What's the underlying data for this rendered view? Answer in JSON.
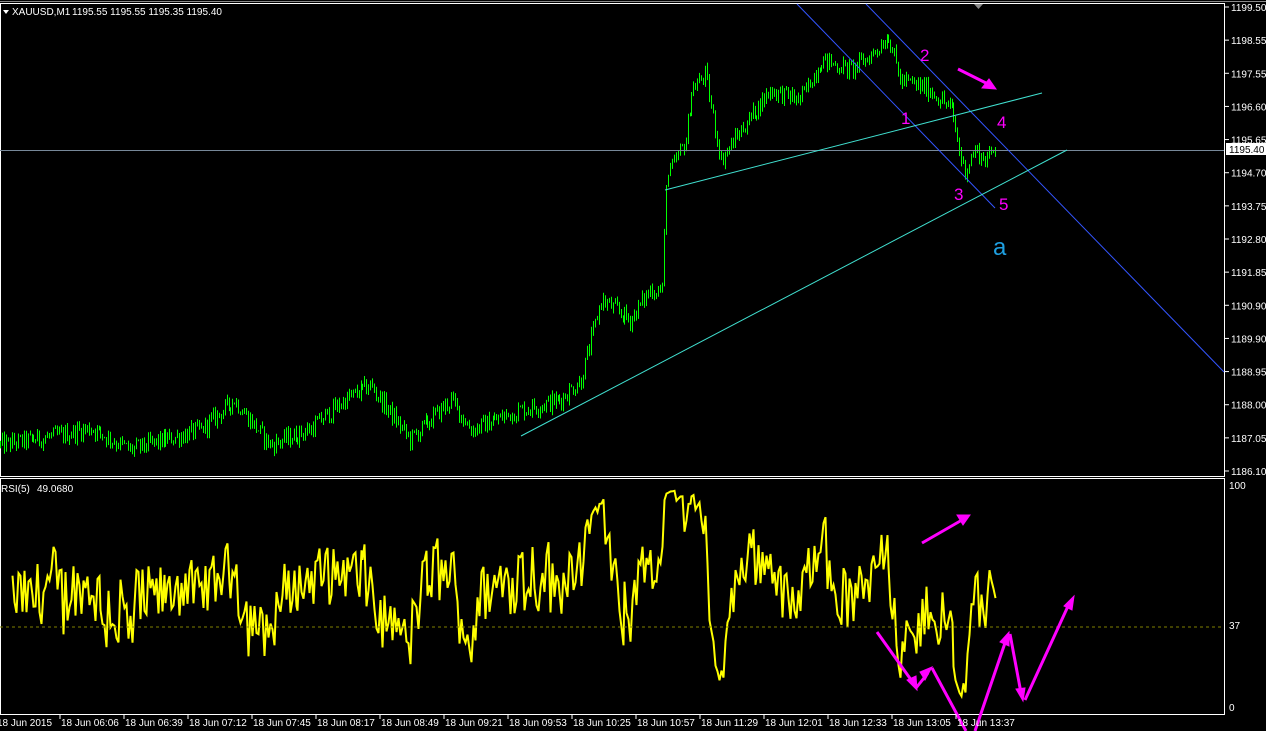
{
  "header": {
    "symbol": "XAUUSD,M1",
    "ohlc": "1195.55 1195.55 1195.35 1195.40"
  },
  "colors": {
    "background": "#000000",
    "bars": "#00ff00",
    "rsi": "#ffff00",
    "axis": "#ffffff",
    "bid_line": "#778899",
    "channel": "#3355ff",
    "trendline": "#40e0d0",
    "annotation": "#ff00ff",
    "wave_label_a": "#1e9fe0"
  },
  "chart_data": [
    {
      "type": "bar",
      "title": "XAUUSD,M1",
      "current_price": "1195.40",
      "ylim": [
        1186.1,
        1199.5
      ],
      "y_ticks": [
        "1199.50",
        "1198.55",
        "1197.55",
        "1196.60",
        "1195.65",
        "1194.70",
        "1193.75",
        "1192.80",
        "1191.85",
        "1190.90",
        "1189.90",
        "1188.95",
        "1188.00",
        "1187.05",
        "1186.10"
      ],
      "x_ticks": [
        "18 Jun 2015",
        "18 Jun 06:06",
        "18 Jun 06:39",
        "18 Jun 07:12",
        "18 Jun 07:45",
        "18 Jun 08:17",
        "18 Jun 08:49",
        "18 Jun 09:21",
        "18 Jun 09:53",
        "18 Jun 10:25",
        "18 Jun 10:57",
        "18 Jun 11:29",
        "18 Jun 12:01",
        "18 Jun 12:33",
        "18 Jun 13:05",
        "18 Jun 13:37"
      ],
      "price_path": [
        {
          "t": "05:35",
          "p": 1186.85
        },
        {
          "t": "06:06",
          "p": 1187.14
        },
        {
          "t": "06:21",
          "p": 1187.34
        },
        {
          "t": "06:41",
          "p": 1186.71
        },
        {
          "t": "07:17",
          "p": 1187.29
        },
        {
          "t": "07:34",
          "p": 1188.15
        },
        {
          "t": "07:52",
          "p": 1186.85
        },
        {
          "t": "08:12",
          "p": 1187.29
        },
        {
          "t": "08:30",
          "p": 1188.15
        },
        {
          "t": "08:43",
          "p": 1188.58
        },
        {
          "t": "09:03",
          "p": 1187.0
        },
        {
          "t": "09:24",
          "p": 1188.15
        },
        {
          "t": "09:34",
          "p": 1187.29
        },
        {
          "t": "09:59",
          "p": 1187.86
        },
        {
          "t": "10:19",
          "p": 1188.15
        },
        {
          "t": "10:30",
          "p": 1188.73
        },
        {
          "t": "10:40",
          "p": 1191.04
        },
        {
          "t": "10:55",
          "p": 1190.46
        },
        {
          "t": "11:05",
          "p": 1191.33
        },
        {
          "t": "11:11",
          "p": 1191.33
        },
        {
          "t": "11:13",
          "p": 1194.5
        },
        {
          "t": "11:23",
          "p": 1195.66
        },
        {
          "t": "11:26",
          "p": 1197.1
        },
        {
          "t": "11:33",
          "p": 1197.54
        },
        {
          "t": "11:41",
          "p": 1195.08
        },
        {
          "t": "11:51",
          "p": 1195.95
        },
        {
          "t": "12:06",
          "p": 1197.1
        },
        {
          "t": "12:21",
          "p": 1196.81
        },
        {
          "t": "12:32",
          "p": 1197.97
        },
        {
          "t": "12:47",
          "p": 1197.68
        },
        {
          "t": "12:57",
          "p": 1198.11
        },
        {
          "t": "13:06",
          "p": 1198.69
        },
        {
          "t": "13:12",
          "p": 1197.39
        },
        {
          "t": "13:27",
          "p": 1197.1
        },
        {
          "t": "13:38",
          "p": 1196.53
        },
        {
          "t": "13:43",
          "p": 1195.08
        },
        {
          "t": "13:45",
          "p": 1194.79
        },
        {
          "t": "13:50",
          "p": 1195.37
        },
        {
          "t": "13:55",
          "p": 1195.08
        },
        {
          "t": "14:00",
          "p": 1195.4
        }
      ],
      "annotations": {
        "w1": "1",
        "w2": "2",
        "w3": "3",
        "w4": "4",
        "w5": "5",
        "wa": "a"
      }
    },
    {
      "type": "line",
      "title": "RSI(5)",
      "current_value": "49.0680",
      "ylim": [
        0,
        100
      ],
      "y_ticks": [
        "100",
        "37",
        "0"
      ],
      "level": 37
    }
  ]
}
